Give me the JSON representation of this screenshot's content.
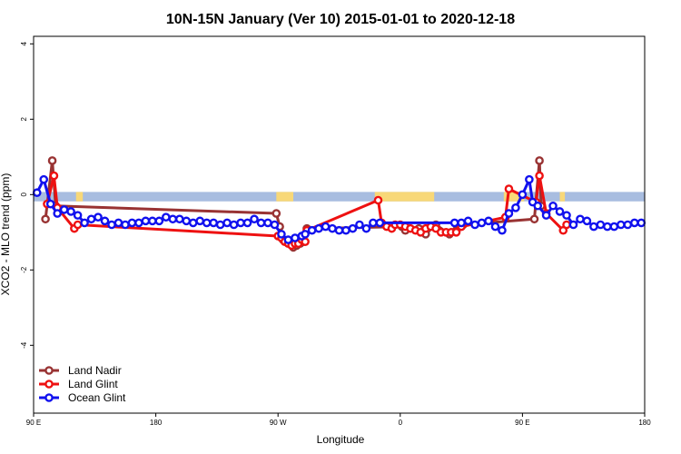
{
  "chart_data": {
    "type": "line",
    "title": "10N-15N January (Ver 10)   2015-01-01 to 2020-12-18",
    "xlabel": "Longitude",
    "ylabel": "XCO2 - MLO trend (ppm)",
    "xlim": [
      0,
      360
    ],
    "ylim": [
      -5.8,
      4.2
    ],
    "x_ticks": [
      {
        "value": 0,
        "label": "90 E"
      },
      {
        "value": 72,
        "label": "180"
      },
      {
        "value": 144,
        "label": "90 W"
      },
      {
        "value": 216,
        "label": "0"
      },
      {
        "value": 288,
        "label": "90 E"
      },
      {
        "value": 360,
        "label": "180"
      }
    ],
    "y_ticks": [
      {
        "value": -4,
        "label": "-4"
      },
      {
        "value": -2,
        "label": "-2"
      },
      {
        "value": 0,
        "label": "0"
      },
      {
        "value": 2,
        "label": "2"
      },
      {
        "value": 4,
        "label": "4"
      }
    ],
    "grid": false,
    "legend_position": "bottom-left",
    "band": {
      "y_range": [
        -0.18,
        0.07
      ],
      "base_color": "#a8bde0",
      "land_color": "#f8d878",
      "land_segments": [
        [
          25,
          29
        ],
        [
          143,
          153
        ],
        [
          201,
          236
        ],
        [
          277,
          289
        ],
        [
          310,
          313
        ]
      ]
    },
    "series": [
      {
        "name": "Land Nadir",
        "color": "#993333",
        "points": [
          [
            7,
            -0.65
          ],
          [
            11,
            0.9
          ],
          [
            13,
            -0.3
          ],
          [
            143,
            -0.5
          ],
          [
            145,
            -0.85
          ],
          [
            147,
            -1.2
          ],
          [
            149,
            -1.25
          ],
          [
            153,
            -1.4
          ],
          [
            155,
            -1.35
          ],
          [
            157,
            -1.3
          ],
          [
            159,
            -1.25
          ],
          [
            161,
            -0.9
          ],
          [
            217,
            -0.85
          ],
          [
            219,
            -0.95
          ],
          [
            227,
            -0.9
          ],
          [
            231,
            -1.05
          ],
          [
            237,
            -0.8
          ],
          [
            245,
            -1.05
          ],
          [
            249,
            -0.95
          ],
          [
            253,
            -0.8
          ],
          [
            295,
            -0.65
          ],
          [
            298,
            0.9
          ],
          [
            299,
            -0.3
          ]
        ]
      },
      {
        "name": "Land Glint",
        "color": "#ee1111",
        "points": [
          [
            8,
            -0.25
          ],
          [
            12,
            0.5
          ],
          [
            14,
            -0.35
          ],
          [
            24,
            -0.9
          ],
          [
            26,
            -0.8
          ],
          [
            144,
            -1.1
          ],
          [
            146,
            -1.15
          ],
          [
            148,
            -1.25
          ],
          [
            150,
            -1.3
          ],
          [
            152,
            -1.35
          ],
          [
            154,
            -1.3
          ],
          [
            156,
            -1.3
          ],
          [
            158,
            -1.2
          ],
          [
            160,
            -1.25
          ],
          [
            161,
            -0.95
          ],
          [
            203,
            -0.15
          ],
          [
            205,
            -0.75
          ],
          [
            208,
            -0.85
          ],
          [
            211,
            -0.9
          ],
          [
            213,
            -0.8
          ],
          [
            216,
            -0.8
          ],
          [
            219,
            -0.85
          ],
          [
            222,
            -0.9
          ],
          [
            225,
            -0.95
          ],
          [
            228,
            -1.0
          ],
          [
            231,
            -0.9
          ],
          [
            234,
            -0.85
          ],
          [
            237,
            -0.9
          ],
          [
            240,
            -1.0
          ],
          [
            243,
            -1.0
          ],
          [
            246,
            -1.0
          ],
          [
            249,
            -1.0
          ],
          [
            252,
            -0.85
          ],
          [
            278,
            -0.6
          ],
          [
            280,
            0.15
          ],
          [
            296,
            -0.2
          ],
          [
            298,
            0.5
          ],
          [
            302,
            -0.5
          ],
          [
            312,
            -0.95
          ],
          [
            314,
            -0.8
          ]
        ]
      },
      {
        "name": "Ocean Glint",
        "color": "#1111ee",
        "points": [
          [
            2,
            0.05
          ],
          [
            6,
            0.4
          ],
          [
            10,
            -0.25
          ],
          [
            14,
            -0.5
          ],
          [
            18,
            -0.4
          ],
          [
            22,
            -0.45
          ],
          [
            26,
            -0.55
          ],
          [
            30,
            -0.75
          ],
          [
            34,
            -0.65
          ],
          [
            38,
            -0.6
          ],
          [
            42,
            -0.7
          ],
          [
            46,
            -0.8
          ],
          [
            50,
            -0.75
          ],
          [
            54,
            -0.8
          ],
          [
            58,
            -0.75
          ],
          [
            62,
            -0.75
          ],
          [
            66,
            -0.7
          ],
          [
            70,
            -0.7
          ],
          [
            74,
            -0.7
          ],
          [
            78,
            -0.6
          ],
          [
            82,
            -0.65
          ],
          [
            86,
            -0.65
          ],
          [
            90,
            -0.7
          ],
          [
            94,
            -0.75
          ],
          [
            98,
            -0.7
          ],
          [
            102,
            -0.75
          ],
          [
            106,
            -0.75
          ],
          [
            110,
            -0.8
          ],
          [
            114,
            -0.75
          ],
          [
            118,
            -0.8
          ],
          [
            122,
            -0.75
          ],
          [
            126,
            -0.75
          ],
          [
            130,
            -0.65
          ],
          [
            134,
            -0.75
          ],
          [
            138,
            -0.75
          ],
          [
            142,
            -0.8
          ],
          [
            146,
            -1.05
          ],
          [
            150,
            -1.2
          ],
          [
            154,
            -1.15
          ],
          [
            158,
            -1.1
          ],
          [
            160,
            -1.05
          ],
          [
            164,
            -0.95
          ],
          [
            168,
            -0.9
          ],
          [
            172,
            -0.85
          ],
          [
            176,
            -0.9
          ],
          [
            180,
            -0.95
          ],
          [
            184,
            -0.95
          ],
          [
            188,
            -0.9
          ],
          [
            192,
            -0.8
          ],
          [
            196,
            -0.9
          ],
          [
            200,
            -0.75
          ],
          [
            204,
            -0.75
          ],
          [
            248,
            -0.75
          ],
          [
            252,
            -0.75
          ],
          [
            256,
            -0.7
          ],
          [
            260,
            -0.8
          ],
          [
            264,
            -0.75
          ],
          [
            268,
            -0.7
          ],
          [
            272,
            -0.85
          ],
          [
            276,
            -0.95
          ],
          [
            280,
            -0.5
          ],
          [
            284,
            -0.35
          ],
          [
            288,
            0.0
          ],
          [
            292,
            0.4
          ],
          [
            294,
            -0.2
          ],
          [
            297,
            -0.3
          ],
          [
            302,
            -0.55
          ],
          [
            306,
            -0.3
          ],
          [
            310,
            -0.45
          ],
          [
            314,
            -0.55
          ],
          [
            318,
            -0.8
          ],
          [
            322,
            -0.65
          ],
          [
            326,
            -0.7
          ],
          [
            330,
            -0.85
          ],
          [
            334,
            -0.8
          ],
          [
            338,
            -0.85
          ],
          [
            342,
            -0.85
          ],
          [
            346,
            -0.8
          ],
          [
            350,
            -0.8
          ],
          [
            354,
            -0.75
          ],
          [
            358,
            -0.75
          ]
        ]
      }
    ]
  }
}
